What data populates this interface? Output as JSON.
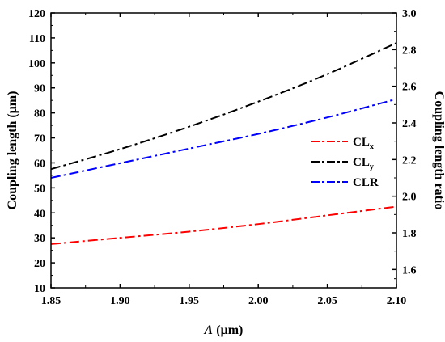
{
  "chart_data": {
    "type": "line",
    "x_axis": {
      "label": "Λ (μm)",
      "label_symbol": "Λ",
      "label_unit": " (μm)",
      "range": [
        1.85,
        2.1
      ],
      "ticks": [
        1.85,
        1.9,
        1.95,
        2.0,
        2.05,
        2.1
      ],
      "tick_labels": [
        "1.85",
        "1.90",
        "1.95",
        "2.00",
        "2.05",
        "2.10"
      ]
    },
    "y_left": {
      "label": "Coupling length (μm)",
      "range": [
        10,
        120
      ],
      "ticks": [
        10,
        20,
        30,
        40,
        50,
        60,
        70,
        80,
        90,
        100,
        110,
        120
      ],
      "tick_labels": [
        "10",
        "20",
        "30",
        "40",
        "50",
        "60",
        "70",
        "80",
        "90",
        "100",
        "110",
        "120"
      ]
    },
    "y_right": {
      "label": "Coupling length ratio",
      "range": [
        1.5,
        3.0
      ],
      "ticks": [
        1.6,
        1.8,
        2.0,
        2.2,
        2.4,
        2.6,
        2.8,
        3.0
      ],
      "tick_labels": [
        "1.6",
        "1.8",
        "2.0",
        "2.2",
        "2.4",
        "2.6",
        "2.8",
        "3.0"
      ]
    },
    "series": [
      {
        "name": "CLx",
        "label_main": "CL",
        "label_sub": "x",
        "axis": "left",
        "color": "#ff0000",
        "dash": "dashdot",
        "x": [
          1.85,
          1.9,
          1.95,
          2.0,
          2.05,
          2.1
        ],
        "y": [
          27.5,
          30.0,
          32.5,
          35.5,
          39.0,
          42.5
        ]
      },
      {
        "name": "CLy",
        "label_main": "CL",
        "label_sub": "y",
        "axis": "left",
        "color": "#000000",
        "dash": "dashdot",
        "x": [
          1.85,
          1.9,
          1.95,
          2.0,
          2.05,
          2.1
        ],
        "y": [
          57.5,
          65.5,
          74.5,
          84.5,
          95.5,
          108.0
        ]
      },
      {
        "name": "CLR",
        "label_main": "CLR",
        "label_sub": "",
        "axis": "right",
        "color": "#0000ff",
        "dash": "dashdot",
        "x": [
          1.85,
          1.9,
          1.95,
          2.0,
          2.05,
          2.1
        ],
        "y": [
          2.1,
          2.18,
          2.26,
          2.34,
          2.43,
          2.53
        ]
      }
    ],
    "legend_position": "right-middle",
    "grid": false
  }
}
